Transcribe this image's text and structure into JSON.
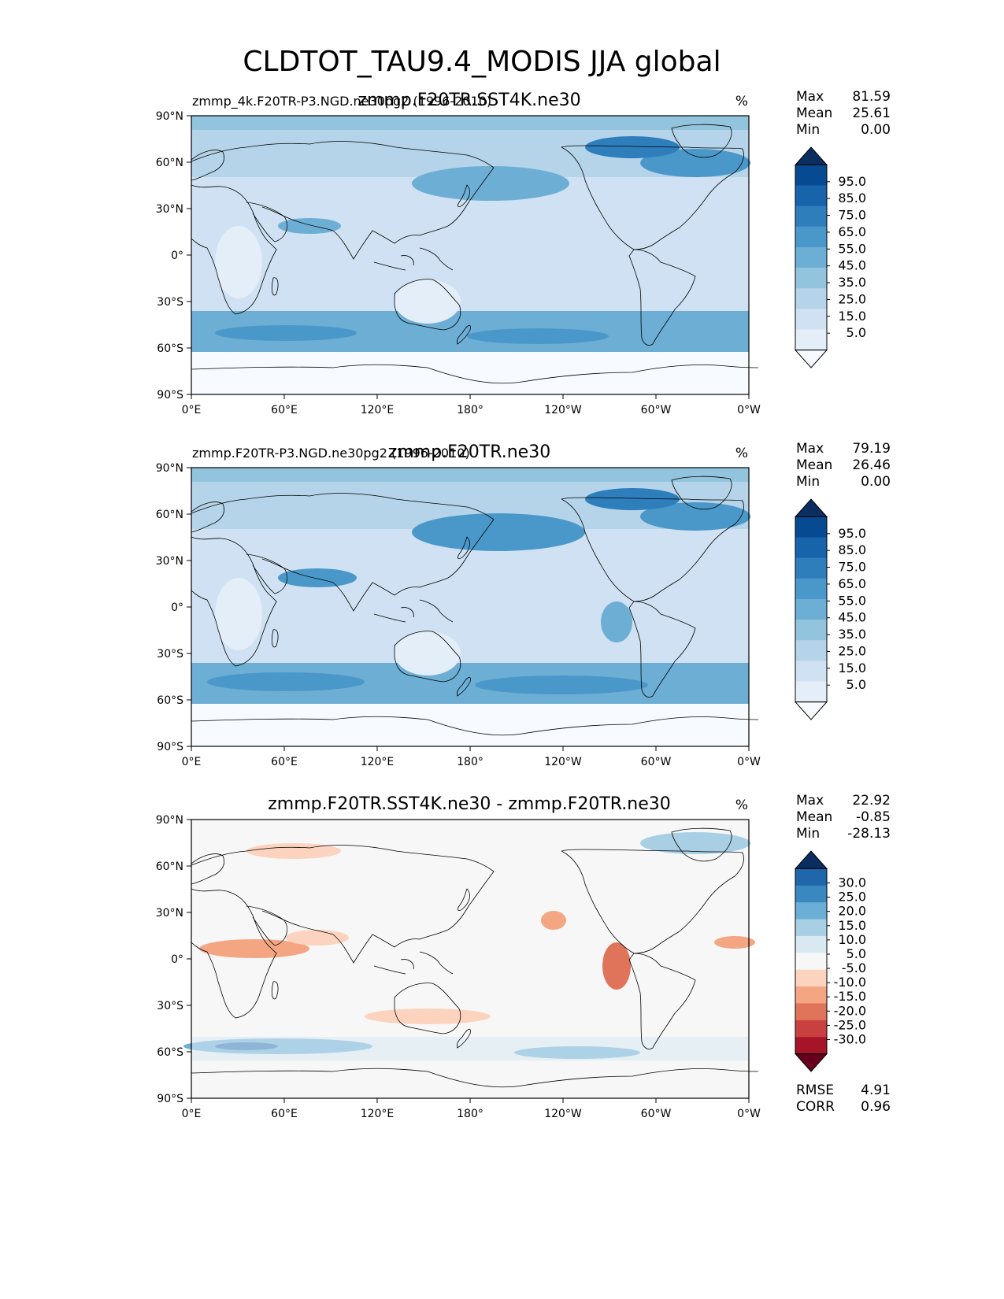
{
  "title": "CLDTOT_TAU9.4_MODIS JJA global",
  "lon_ticks": [
    "0°E",
    "60°E",
    "120°E",
    "180°",
    "120°W",
    "60°W",
    "0°W"
  ],
  "lat_ticks": [
    "90°N",
    "60°N",
    "30°N",
    "0°",
    "30°S",
    "60°S",
    "90°S"
  ],
  "colors": {
    "seq": [
      "#f7fbff",
      "#e3eef9",
      "#cfe1f2",
      "#b5d4e9",
      "#93c4de",
      "#6daed5",
      "#4a98c9",
      "#2e7ebc",
      "#1764ab",
      "#084a91",
      "#0b2e61"
    ],
    "div": [
      "#67001f",
      "#a51429",
      "#c94040",
      "#e0745a",
      "#f4a582",
      "#fbd3bf",
      "#f7f7f7",
      "#d9e9f2",
      "#a8cfe4",
      "#6baed6",
      "#3a88c0",
      "#1f66aa",
      "#0b2e61"
    ],
    "land_line": "#000000"
  },
  "panels": [
    {
      "left_title": "zmmp_4k.F20TR-P3.NGD.ne30pg2 (1996-2010)",
      "center_title": "zmmp.F20TR.SST4K.ne30",
      "units": "%",
      "stats": [
        {
          "label": "Max",
          "value": "81.59"
        },
        {
          "label": "Mean",
          "value": "25.61"
        },
        {
          "label": "Min",
          "value": "0.00"
        }
      ],
      "colorbar": {
        "type": "sequential",
        "tick_labels": [
          "95.0",
          "85.0",
          "75.0",
          "65.0",
          "55.0",
          "45.0",
          "35.0",
          "25.0",
          "15.0",
          "5.0"
        ]
      }
    },
    {
      "left_title": "zmmp.F20TR-P3.NGD.ne30pg2 (1996-2010)",
      "center_title": "zmmp.F20TR.ne30",
      "units": "%",
      "stats": [
        {
          "label": "Max",
          "value": "79.19"
        },
        {
          "label": "Mean",
          "value": "26.46"
        },
        {
          "label": "Min",
          "value": "0.00"
        }
      ],
      "colorbar": {
        "type": "sequential",
        "tick_labels": [
          "95.0",
          "85.0",
          "75.0",
          "65.0",
          "55.0",
          "45.0",
          "35.0",
          "25.0",
          "15.0",
          "5.0"
        ]
      }
    },
    {
      "left_title": "",
      "center_title": "zmmp.F20TR.SST4K.ne30 - zmmp.F20TR.ne30",
      "units": "%",
      "stats": [
        {
          "label": "Max",
          "value": "22.92"
        },
        {
          "label": "Mean",
          "value": "-0.85"
        },
        {
          "label": "Min",
          "value": "-28.13"
        }
      ],
      "colorbar": {
        "type": "diverging",
        "tick_labels": [
          "30.0",
          "25.0",
          "20.0",
          "15.0",
          "10.0",
          "5.0",
          "-5.0",
          "-10.0",
          "-15.0",
          "-20.0",
          "-25.0",
          "-30.0"
        ]
      },
      "extra_stats": [
        {
          "label": "RMSE",
          "value": "4.91"
        },
        {
          "label": "CORR",
          "value": "0.96"
        }
      ]
    }
  ]
}
